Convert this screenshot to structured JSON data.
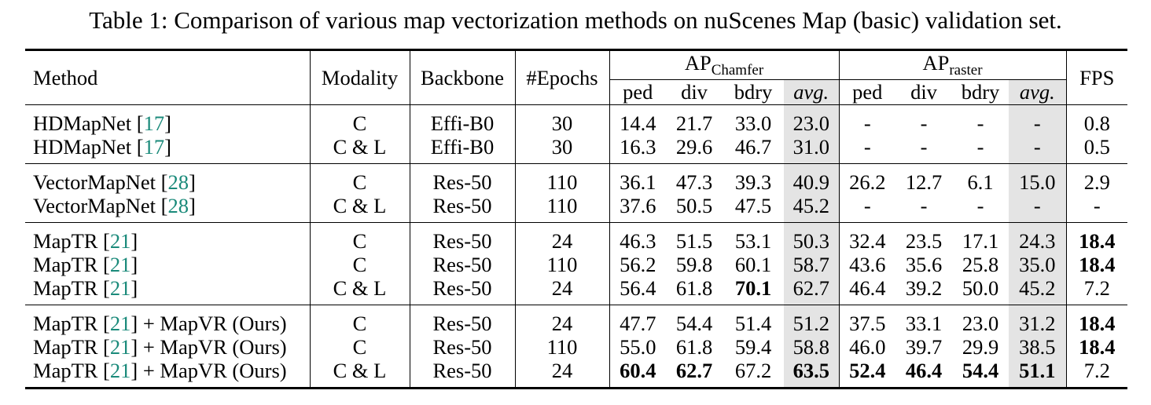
{
  "caption": "Table 1: Comparison of various map vectorization methods on nuScenes Map (basic) validation set.",
  "headers": {
    "method": "Method",
    "modality": "Modality",
    "backbone": "Backbone",
    "epochs": "#Epochs",
    "ap_chamfer_main": "AP",
    "ap_chamfer_sub": "Chamfer",
    "ap_raster_main": "AP",
    "ap_raster_sub": "raster",
    "fps": "FPS",
    "sub_columns": [
      "ped",
      "div",
      "bdry",
      "avg."
    ]
  },
  "groups": [
    {
      "rows": [
        {
          "method": "HDMapNet [",
          "ref": "17",
          "method_suffix": "]",
          "modality": "C",
          "backbone": "Effi-B0",
          "epochs": "30",
          "chamfer": [
            "14.4",
            "21.7",
            "33.0",
            "23.0"
          ],
          "raster": [
            "-",
            "-",
            "-",
            "-"
          ],
          "fps": "0.8",
          "bold": []
        },
        {
          "method": "HDMapNet [",
          "ref": "17",
          "method_suffix": "]",
          "modality": "C & L",
          "backbone": "Effi-B0",
          "epochs": "30",
          "chamfer": [
            "16.3",
            "29.6",
            "46.7",
            "31.0"
          ],
          "raster": [
            "-",
            "-",
            "-",
            "-"
          ],
          "fps": "0.5",
          "bold": []
        }
      ]
    },
    {
      "rows": [
        {
          "method": "VectorMapNet [",
          "ref": "28",
          "method_suffix": "]",
          "modality": "C",
          "backbone": "Res-50",
          "epochs": "110",
          "chamfer": [
            "36.1",
            "47.3",
            "39.3",
            "40.9"
          ],
          "raster": [
            "26.2",
            "12.7",
            "6.1",
            "15.0"
          ],
          "fps": "2.9",
          "bold": []
        },
        {
          "method": "VectorMapNet [",
          "ref": "28",
          "method_suffix": "]",
          "modality": "C & L",
          "backbone": "Res-50",
          "epochs": "110",
          "chamfer": [
            "37.6",
            "50.5",
            "47.5",
            "45.2"
          ],
          "raster": [
            "-",
            "-",
            "-",
            "-"
          ],
          "fps": "-",
          "bold": []
        }
      ]
    },
    {
      "rows": [
        {
          "method": "MapTR [",
          "ref": "21",
          "method_suffix": "]",
          "modality": "C",
          "backbone": "Res-50",
          "epochs": "24",
          "chamfer": [
            "46.3",
            "51.5",
            "53.1",
            "50.3"
          ],
          "raster": [
            "32.4",
            "23.5",
            "17.1",
            "24.3"
          ],
          "fps": "18.4",
          "bold": [
            "fps"
          ]
        },
        {
          "method": "MapTR [",
          "ref": "21",
          "method_suffix": "]",
          "modality": "C",
          "backbone": "Res-50",
          "epochs": "110",
          "chamfer": [
            "56.2",
            "59.8",
            "60.1",
            "58.7"
          ],
          "raster": [
            "43.6",
            "35.6",
            "25.8",
            "35.0"
          ],
          "fps": "18.4",
          "bold": [
            "fps"
          ]
        },
        {
          "method": "MapTR [",
          "ref": "21",
          "method_suffix": "]",
          "modality": "C & L",
          "backbone": "Res-50",
          "epochs": "24",
          "chamfer": [
            "56.4",
            "61.8",
            "70.1",
            "62.7"
          ],
          "raster": [
            "46.4",
            "39.2",
            "50.0",
            "45.2"
          ],
          "fps": "7.2",
          "bold": [
            "c2"
          ]
        }
      ]
    },
    {
      "rows": [
        {
          "method": "MapTR [",
          "ref": "21",
          "method_suffix": "] + MapVR (Ours)",
          "modality": "C",
          "backbone": "Res-50",
          "epochs": "24",
          "chamfer": [
            "47.7",
            "54.4",
            "51.4",
            "51.2"
          ],
          "raster": [
            "37.5",
            "33.1",
            "23.0",
            "31.2"
          ],
          "fps": "18.4",
          "bold": [
            "fps"
          ]
        },
        {
          "method": "MapTR [",
          "ref": "21",
          "method_suffix": "] + MapVR (Ours)",
          "modality": "C",
          "backbone": "Res-50",
          "epochs": "110",
          "chamfer": [
            "55.0",
            "61.8",
            "59.4",
            "58.8"
          ],
          "raster": [
            "46.0",
            "39.7",
            "29.9",
            "38.5"
          ],
          "fps": "18.4",
          "bold": [
            "fps"
          ]
        },
        {
          "method": "MapTR [",
          "ref": "21",
          "method_suffix": "] + MapVR (Ours)",
          "modality": "C & L",
          "backbone": "Res-50",
          "epochs": "24",
          "chamfer": [
            "60.4",
            "62.7",
            "67.2",
            "63.5"
          ],
          "raster": [
            "52.4",
            "46.4",
            "54.4",
            "51.1"
          ],
          "fps": "7.2",
          "bold": [
            "c0",
            "c1",
            "c3",
            "r0",
            "r1",
            "r2",
            "r3"
          ]
        }
      ]
    }
  ]
}
